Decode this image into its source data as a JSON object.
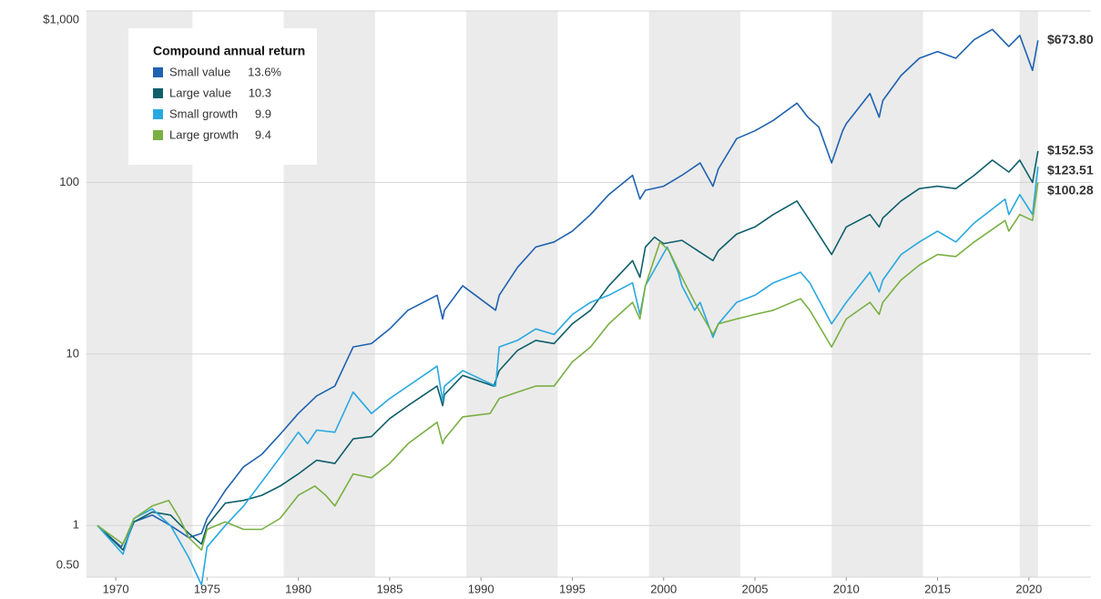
{
  "chart_data": {
    "type": "line",
    "log_y": true,
    "grid": true,
    "xlim": [
      1968.4,
      2023.4
    ],
    "xticks": [
      1970,
      1975,
      1980,
      1985,
      1990,
      1995,
      2000,
      2005,
      2010,
      2015,
      2020
    ],
    "ylim": [
      0.5,
      1000
    ],
    "yticks": [
      {
        "value": 1000,
        "label": "$1,000"
      },
      100,
      10,
      1,
      {
        "value": 0.5,
        "label": "0.50"
      }
    ],
    "bands": [
      [
        1968.4,
        1974.2
      ],
      [
        1979.2,
        1984.2
      ],
      [
        1989.2,
        1994.2
      ],
      [
        1999.2,
        2004.2
      ],
      [
        2009.2,
        2014.2
      ],
      [
        2019.5,
        2020.5
      ]
    ],
    "band_color": "#ebebeb",
    "legend_title": "Compound annual return",
    "series": [
      {
        "name": "Small value",
        "color": "#1f62b0",
        "return": {
          "value": 13.6,
          "label": "13.6%"
        },
        "end_label": "$673.80",
        "x": [
          1969,
          1970.3,
          1971,
          1972,
          1973,
          1974,
          1974.7,
          1975,
          1976,
          1977,
          1978,
          1979,
          1980,
          1981,
          1982,
          1983,
          1984,
          1985,
          1986,
          1987.6,
          1987.9,
          1988,
          1989,
          1990.8,
          1991,
          1992,
          1993,
          1994,
          1995,
          1996,
          1997,
          1998.3,
          1998.7,
          1999,
          2000,
          2001,
          2002,
          2002.7,
          2003,
          2004,
          2005,
          2006,
          2007.3,
          2007.9,
          2008.5,
          2009.2,
          2009.8,
          2010,
          2011.3,
          2011.8,
          2012,
          2013,
          2014,
          2015,
          2016,
          2017,
          2018,
          2018.9,
          2019.5,
          2020.2,
          2020.5
        ],
        "values": [
          1.0,
          0.75,
          1.05,
          1.15,
          1.0,
          0.85,
          0.9,
          1.1,
          1.6,
          2.2,
          2.6,
          3.4,
          4.5,
          5.7,
          6.5,
          11,
          11.5,
          14,
          18,
          22,
          16,
          18,
          25,
          18,
          22,
          32,
          42,
          45,
          52,
          65,
          85,
          110,
          80,
          90,
          95,
          110,
          130,
          95,
          120,
          180,
          200,
          230,
          290,
          240,
          210,
          130,
          200,
          220,
          330,
          240,
          300,
          420,
          530,
          580,
          530,
          680,
          780,
          620,
          720,
          450,
          673.8
        ]
      },
      {
        "name": "Large value",
        "color": "#0f5f6b",
        "return": 10.3,
        "end_label": "$152.53",
        "x": [
          1969,
          1970.4,
          1971,
          1972,
          1973,
          1974,
          1974.7,
          1975,
          1976,
          1977,
          1978,
          1979,
          1980,
          1981,
          1982,
          1983,
          1984,
          1985,
          1986,
          1987.6,
          1987.9,
          1988,
          1989,
          1990.7,
          1991,
          1992,
          1993,
          1994,
          1995,
          1996,
          1997,
          1998.3,
          1998.7,
          1999,
          1999.5,
          2000,
          2001,
          2002.7,
          2003,
          2004,
          2005,
          2006,
          2007.3,
          2008,
          2009.2,
          2010,
          2011.3,
          2011.8,
          2012,
          2013,
          2014,
          2015,
          2016,
          2017,
          2018,
          2018.9,
          2019.5,
          2020.2,
          2020.5
        ],
        "values": [
          1.0,
          0.72,
          1.05,
          1.2,
          1.15,
          0.9,
          0.78,
          1.0,
          1.35,
          1.4,
          1.5,
          1.7,
          2.0,
          2.4,
          2.3,
          3.2,
          3.3,
          4.2,
          5.0,
          6.5,
          5.0,
          5.8,
          7.5,
          6.5,
          8,
          10.5,
          12,
          11.5,
          15,
          18,
          25,
          35,
          28,
          42,
          48,
          44,
          46,
          35,
          40,
          50,
          55,
          65,
          78,
          60,
          38,
          55,
          65,
          55,
          62,
          78,
          92,
          95,
          92,
          110,
          135,
          115,
          135,
          100,
          152.53
        ]
      },
      {
        "name": "Small growth",
        "color": "#29a8e0",
        "return": 9.9,
        "end_label": "$123.51",
        "x": [
          1969,
          1970.4,
          1971,
          1972,
          1973,
          1974,
          1974.7,
          1975,
          1976,
          1977,
          1978,
          1979,
          1980,
          1980.5,
          1981,
          1982,
          1983,
          1984,
          1985,
          1986,
          1987.6,
          1987.9,
          1988,
          1989,
          1990.8,
          1991,
          1992,
          1993,
          1994,
          1995,
          1996,
          1997,
          1998.3,
          1998.7,
          1999,
          2000.2,
          2000.8,
          2001,
          2001.7,
          2002,
          2002.7,
          2003,
          2004,
          2005,
          2006,
          2007.5,
          2008,
          2009.2,
          2010,
          2011.3,
          2011.8,
          2012,
          2013,
          2014,
          2015,
          2016,
          2017,
          2018.7,
          2018.9,
          2019.5,
          2020.2,
          2020.5
        ],
        "values": [
          1.0,
          0.68,
          1.1,
          1.25,
          1.0,
          0.65,
          0.45,
          0.75,
          1.0,
          1.3,
          1.8,
          2.5,
          3.5,
          3.0,
          3.6,
          3.5,
          6.0,
          4.5,
          5.5,
          6.5,
          8.5,
          5.3,
          6.5,
          8.0,
          6.5,
          11,
          12,
          14,
          13,
          17,
          20,
          22,
          26,
          17,
          25,
          42,
          30,
          25,
          18,
          20,
          12.5,
          15,
          20,
          22,
          26,
          30,
          26,
          15,
          20,
          30,
          23,
          27,
          38,
          45,
          52,
          45,
          58,
          80,
          65,
          85,
          65,
          123.51
        ]
      },
      {
        "name": "Large growth",
        "color": "#79b043",
        "return": 9.4,
        "end_label": "$100.28",
        "x": [
          1969,
          1970.4,
          1971,
          1972,
          1972.9,
          1973.5,
          1974,
          1974.7,
          1975,
          1976,
          1977,
          1978,
          1979,
          1980,
          1980.9,
          1981.5,
          1982,
          1983,
          1984,
          1985,
          1986,
          1987.6,
          1987.9,
          1988,
          1989,
          1990.5,
          1991,
          1992,
          1993,
          1994,
          1995,
          1996,
          1997,
          1998.3,
          1998.7,
          1999,
          1999.8,
          2000.3,
          2001,
          2001.7,
          2002.7,
          2003,
          2004,
          2005,
          2006,
          2007.5,
          2008,
          2009.2,
          2010,
          2011.3,
          2011.8,
          2012,
          2013,
          2014,
          2015,
          2016,
          2017,
          2018.7,
          2018.9,
          2019.5,
          2020.2,
          2020.5
        ],
        "values": [
          1.0,
          0.78,
          1.1,
          1.3,
          1.4,
          1.1,
          0.85,
          0.72,
          0.95,
          1.05,
          0.95,
          0.95,
          1.1,
          1.5,
          1.7,
          1.5,
          1.3,
          2.0,
          1.9,
          2.3,
          3.0,
          4.0,
          3.0,
          3.2,
          4.3,
          4.5,
          5.5,
          6.0,
          6.5,
          6.5,
          9,
          11,
          15,
          20,
          16,
          25,
          45,
          40,
          28,
          20,
          13,
          15,
          16,
          17,
          18,
          21,
          18,
          11,
          16,
          20,
          17,
          20,
          27,
          33,
          38,
          37,
          45,
          60,
          52,
          65,
          60,
          100.28
        ]
      }
    ]
  }
}
